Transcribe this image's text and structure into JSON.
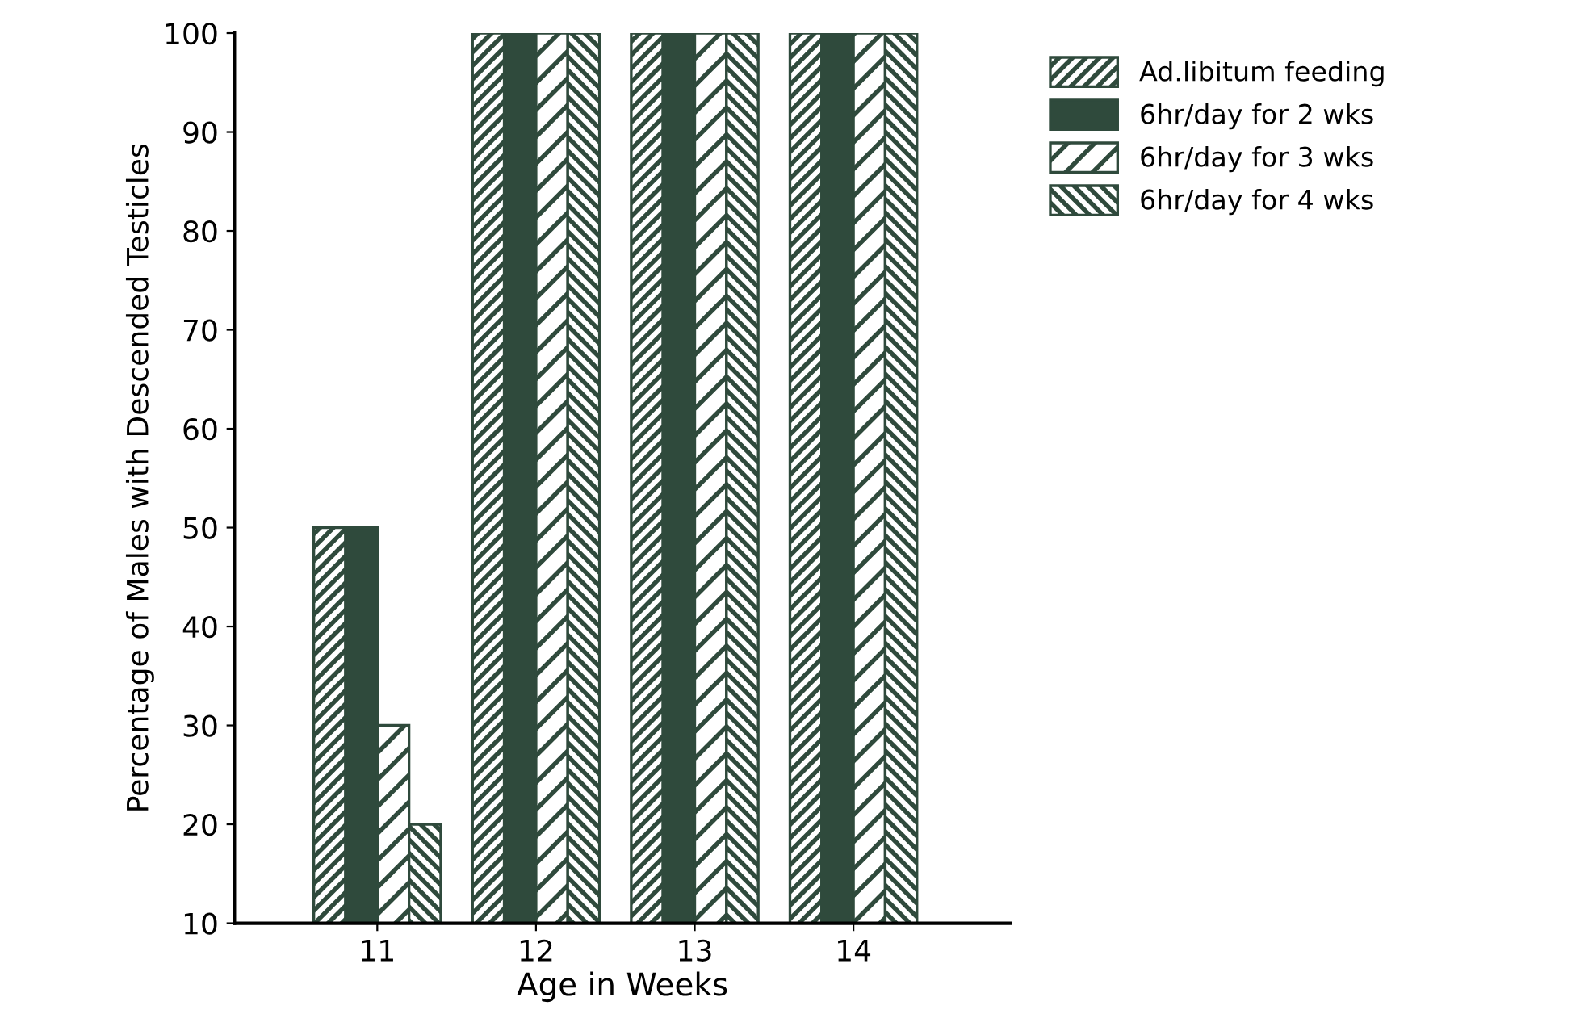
{
  "chart_data": {
    "type": "bar",
    "xlabel": "Age in Weeks",
    "ylabel": "Percentage of Males with Descended Testicles",
    "categories": [
      "11",
      "12",
      "13",
      "14"
    ],
    "series": [
      {
        "name": "Ad.libitum feeding",
        "color": "#2f4a3c",
        "values": [
          50,
          100,
          100,
          100
        ]
      },
      {
        "name": "6hr/day for 2 wks",
        "color": "#2f4a3c",
        "values": [
          50,
          100,
          100,
          100
        ]
      },
      {
        "name": "6hr/day for 3 wks",
        "color": "#2f4a3c",
        "values": [
          30,
          100,
          100,
          100
        ]
      },
      {
        "name": "6hr/day for 4 wks",
        "color": "#2f4a3c",
        "values": [
          20,
          100,
          100,
          100
        ]
      }
    ],
    "ylim": [
      10,
      100
    ],
    "yticks": [
      10,
      20,
      30,
      40,
      50,
      60,
      70,
      80,
      90,
      100
    ],
    "grid": false,
    "legend": "top right"
  }
}
